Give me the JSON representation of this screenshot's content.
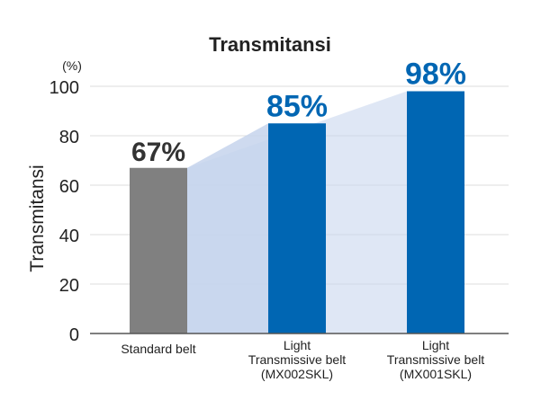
{
  "chart_data": {
    "type": "bar",
    "title": "Transmitansi",
    "unit_label": "(%)",
    "ylabel": "Transmitansi",
    "xlabel": "",
    "ylim": [
      0,
      100
    ],
    "yticks": [
      0,
      20,
      40,
      60,
      80,
      100
    ],
    "grid": true,
    "categories": [
      [
        "Standard belt"
      ],
      [
        "Light",
        "Transmissive belt",
        "(MX002SKL)"
      ],
      [
        "Light",
        "Transmissive belt",
        "(MX001SKL)"
      ]
    ],
    "values": [
      67,
      85,
      98
    ],
    "data_labels": [
      "67%",
      "85%",
      "98%"
    ],
    "colors": {
      "bars": [
        "#808080",
        "#0066b3",
        "#0066b3"
      ],
      "labels": [
        "#333333",
        "#0066b3",
        "#0066b3"
      ],
      "band_fill": "#c5d4ec",
      "text": "#222222",
      "grid": "#dddddd"
    }
  }
}
